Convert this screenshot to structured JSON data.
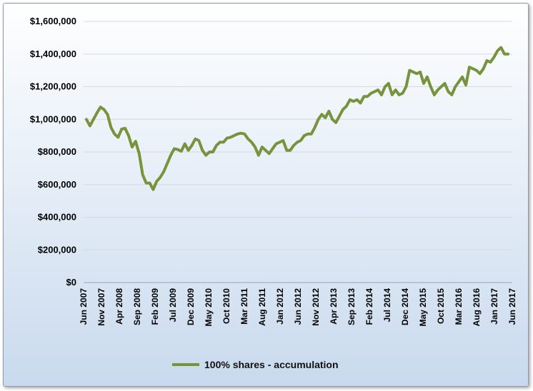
{
  "chart_data": {
    "type": "line",
    "title": "",
    "xlabel": "",
    "ylabel": "",
    "ylim": [
      0,
      1600000
    ],
    "y_ticks": [
      0,
      200000,
      400000,
      600000,
      800000,
      1000000,
      1200000,
      1400000,
      1600000
    ],
    "y_tick_labels": [
      "$0",
      "$200,000",
      "$400,000",
      "$600,000",
      "$800,000",
      "$1,000,000",
      "$1,200,000",
      "$1,400,000",
      "$1,600,000"
    ],
    "x_tick_labels": [
      "Jun 2007",
      "Nov 2007",
      "Apr 2008",
      "Sep 2008",
      "Feb 2009",
      "Jul 2009",
      "Dec 2009",
      "May 2010",
      "Oct 2010",
      "Mar 2011",
      "Aug 2011",
      "Jan 2012",
      "Jun 2012",
      "Nov 2012",
      "Apr 2013",
      "Sep 2013",
      "Feb 2014",
      "Jul 2014",
      "Dec 2014",
      "May 2015",
      "Oct 2015",
      "Mar 2016",
      "Aug 2016",
      "Jan 2017",
      "Jun 2017"
    ],
    "grid": true,
    "legend_position": "bottom",
    "series": [
      {
        "name": "100% shares - accumulation",
        "color": "#77933c",
        "values": [
          1000000,
          960000,
          1000000,
          1040000,
          1075000,
          1060000,
          1030000,
          950000,
          910000,
          890000,
          940000,
          945000,
          900000,
          830000,
          865000,
          790000,
          660000,
          610000,
          610000,
          570000,
          620000,
          645000,
          680000,
          730000,
          780000,
          820000,
          815000,
          805000,
          850000,
          810000,
          840000,
          880000,
          870000,
          810000,
          780000,
          800000,
          800000,
          840000,
          860000,
          860000,
          885000,
          890000,
          900000,
          910000,
          915000,
          910000,
          880000,
          860000,
          830000,
          780000,
          830000,
          810000,
          790000,
          820000,
          850000,
          860000,
          870000,
          810000,
          810000,
          840000,
          860000,
          870000,
          900000,
          910000,
          910000,
          950000,
          1000000,
          1030000,
          1010000,
          1050000,
          1000000,
          980000,
          1020000,
          1060000,
          1080000,
          1120000,
          1110000,
          1120000,
          1100000,
          1140000,
          1140000,
          1160000,
          1170000,
          1180000,
          1150000,
          1200000,
          1220000,
          1150000,
          1180000,
          1150000,
          1160000,
          1200000,
          1300000,
          1290000,
          1280000,
          1290000,
          1220000,
          1260000,
          1200000,
          1150000,
          1180000,
          1200000,
          1220000,
          1170000,
          1150000,
          1200000,
          1230000,
          1260000,
          1210000,
          1320000,
          1310000,
          1300000,
          1280000,
          1310000,
          1360000,
          1350000,
          1380000,
          1420000,
          1440000,
          1400000,
          1400000
        ]
      }
    ]
  }
}
